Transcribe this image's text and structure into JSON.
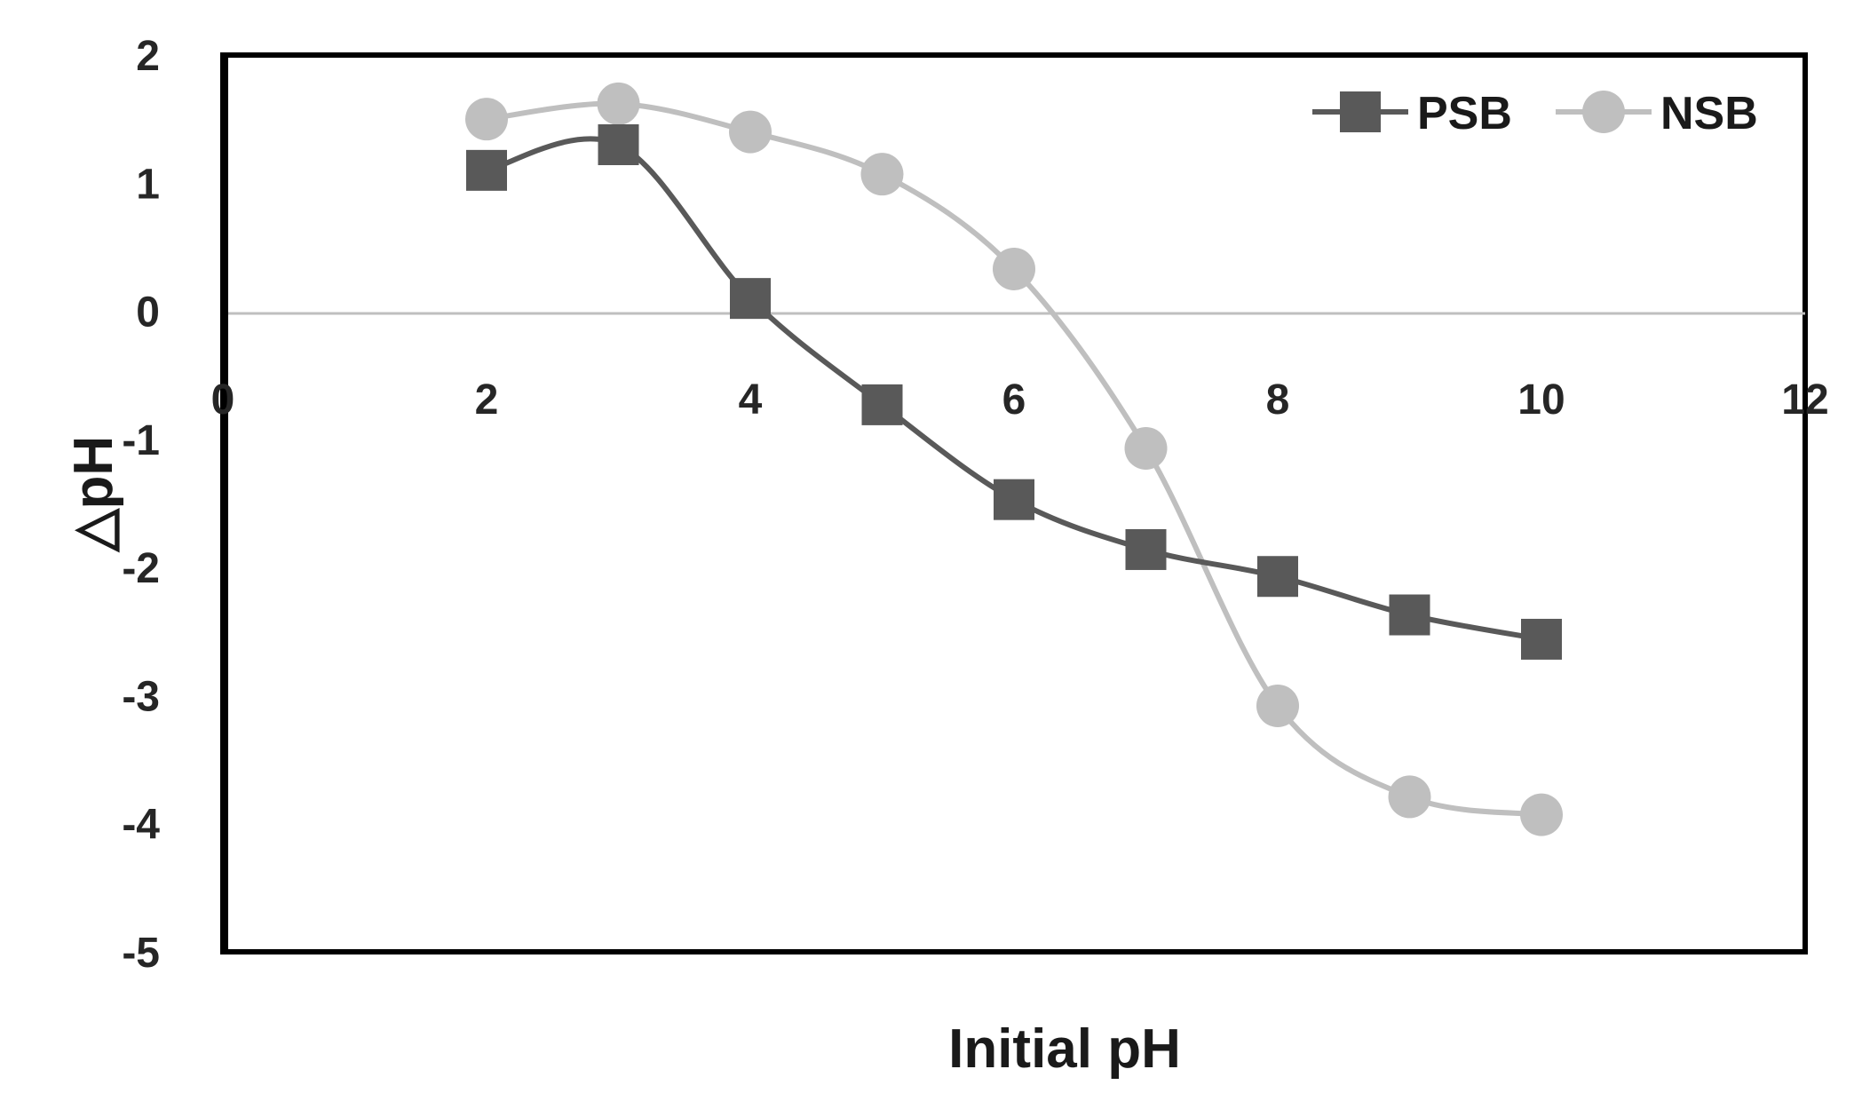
{
  "chart_data": {
    "type": "line",
    "title": "",
    "xlabel": "Initial pH",
    "ylabel": "△pH",
    "xlim": [
      0,
      12
    ],
    "ylim": [
      -5,
      2
    ],
    "xticks": [
      "0",
      "2",
      "4",
      "6",
      "8",
      "10",
      "12"
    ],
    "yticks": [
      "2",
      "1",
      "0",
      "-1",
      "-2",
      "-3",
      "-4",
      "-5"
    ],
    "grid": false,
    "smooth": true,
    "legend": "top-right",
    "series": [
      {
        "name": "PSB",
        "marker": "square",
        "color": "#595959",
        "x": [
          2,
          3,
          4,
          5,
          6,
          7,
          8,
          9,
          10
        ],
        "y": [
          1.1,
          1.3,
          0.1,
          -0.73,
          -1.47,
          -1.86,
          -2.07,
          -2.37,
          -2.56
        ]
      },
      {
        "name": "NSB",
        "marker": "circle",
        "color": "#bfbfbf",
        "x": [
          2,
          3,
          4,
          5,
          6,
          7,
          8,
          9,
          10
        ],
        "y": [
          1.5,
          1.62,
          1.4,
          1.07,
          0.33,
          -1.07,
          -3.08,
          -3.79,
          -3.93
        ]
      }
    ]
  }
}
